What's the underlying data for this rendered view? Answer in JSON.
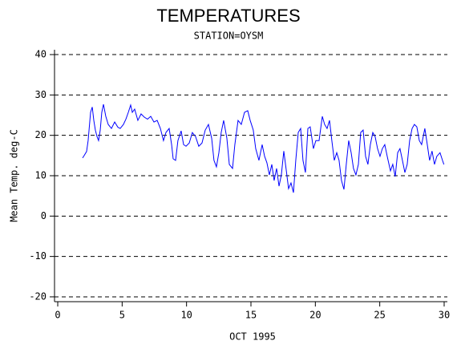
{
  "chart_data": {
    "type": "line",
    "title": "TEMPERATURES",
    "subtitle": "STATION=OYSM",
    "x_label": "OCT 1995",
    "y_label": "Mean Temp. deg-C",
    "color": "#0000ff",
    "grid": true,
    "xlim": [
      -0.25,
      30.25
    ],
    "ylim": [
      -21.2,
      41.2
    ],
    "xticks": [
      0,
      5,
      10,
      15,
      20,
      25,
      30
    ],
    "yticks": [
      -20,
      -10,
      0,
      10,
      20,
      30,
      40
    ],
    "x": [
      1.93,
      2.05,
      2.24,
      2.36,
      2.55,
      2.68,
      2.8,
      2.92,
      3.05,
      3.17,
      3.3,
      3.42,
      3.55,
      3.73,
      3.92,
      4.17,
      4.42,
      4.67,
      4.85,
      5.1,
      5.29,
      5.48,
      5.66,
      5.79,
      5.97,
      6.22,
      6.47,
      6.72,
      6.97,
      7.22,
      7.47,
      7.72,
      7.97,
      8.21,
      8.4,
      8.65,
      8.84,
      8.96,
      9.15,
      9.33,
      9.58,
      9.77,
      9.96,
      10.21,
      10.45,
      10.7,
      10.95,
      11.2,
      11.45,
      11.7,
      11.95,
      12.13,
      12.32,
      12.51,
      12.69,
      12.88,
      13.13,
      13.32,
      13.57,
      13.75,
      14.0,
      14.25,
      14.5,
      14.75,
      14.94,
      15.18,
      15.37,
      15.62,
      15.87,
      16.06,
      16.24,
      16.43,
      16.62,
      16.8,
      16.99,
      17.18,
      17.36,
      17.55,
      17.74,
      17.92,
      18.11,
      18.3,
      18.48,
      18.67,
      18.86,
      19.04,
      19.23,
      19.42,
      19.6,
      19.85,
      20.04,
      20.29,
      20.54,
      20.72,
      20.91,
      21.1,
      21.28,
      21.47,
      21.66,
      21.84,
      22.03,
      22.22,
      22.4,
      22.59,
      22.78,
      22.96,
      23.15,
      23.34,
      23.52,
      23.71,
      23.9,
      24.08,
      24.27,
      24.46,
      24.64,
      24.83,
      25.02,
      25.2,
      25.39,
      25.58,
      25.83,
      26.01,
      26.2,
      26.39,
      26.57,
      26.76,
      26.95,
      27.13,
      27.32,
      27.51,
      27.69,
      27.88,
      28.07,
      28.25,
      28.5,
      28.69,
      28.87,
      29.06,
      29.25,
      29.43,
      29.68,
      29.87,
      29.98
    ],
    "values": [
      14.4,
      15,
      16,
      18.7,
      25.7,
      27,
      23.7,
      21.3,
      19.7,
      18.7,
      21.3,
      25.7,
      27.7,
      24.7,
      22.7,
      21.7,
      23.3,
      22,
      21.7,
      22.7,
      24,
      25.7,
      27.5,
      25.7,
      26.5,
      23.7,
      25.3,
      24.5,
      24,
      24.7,
      23.3,
      23.7,
      21.7,
      18.7,
      20.7,
      21.7,
      17.7,
      14.2,
      13.8,
      18.7,
      21.1,
      17.7,
      17.3,
      18.1,
      20.7,
      19.7,
      17.3,
      18.1,
      21.3,
      22.7,
      19.3,
      13.8,
      12.2,
      15.7,
      20.7,
      23.7,
      19.3,
      12.8,
      11.8,
      17.7,
      23.7,
      22.7,
      25.7,
      26.1,
      23.7,
      21.3,
      16.7,
      13.8,
      17.7,
      14.8,
      13.2,
      10.2,
      12.8,
      8.8,
      11.8,
      7.4,
      10.2,
      16.1,
      11.4,
      6.8,
      8.2,
      5.8,
      13.8,
      20.7,
      21.7,
      13.8,
      10.8,
      21.7,
      22.1,
      16.7,
      18.7,
      18.7,
      24.7,
      22.7,
      21.7,
      23.7,
      18.7,
      13.8,
      15.7,
      13.8,
      8.8,
      6.6,
      12.8,
      18.7,
      15.7,
      11.8,
      10.2,
      12.8,
      20.7,
      21.3,
      14.8,
      12.8,
      17.7,
      20.7,
      19.7,
      16.7,
      14.8,
      16.7,
      17.7,
      14.8,
      11.2,
      12.8,
      9.8,
      15.7,
      16.7,
      13.8,
      10.8,
      12.8,
      18.7,
      21.7,
      22.7,
      22.1,
      18.7,
      17.7,
      21.7,
      17.7,
      13.8,
      16.1,
      12.8,
      14.8,
      15.7,
      13.8,
      12.8
    ]
  }
}
